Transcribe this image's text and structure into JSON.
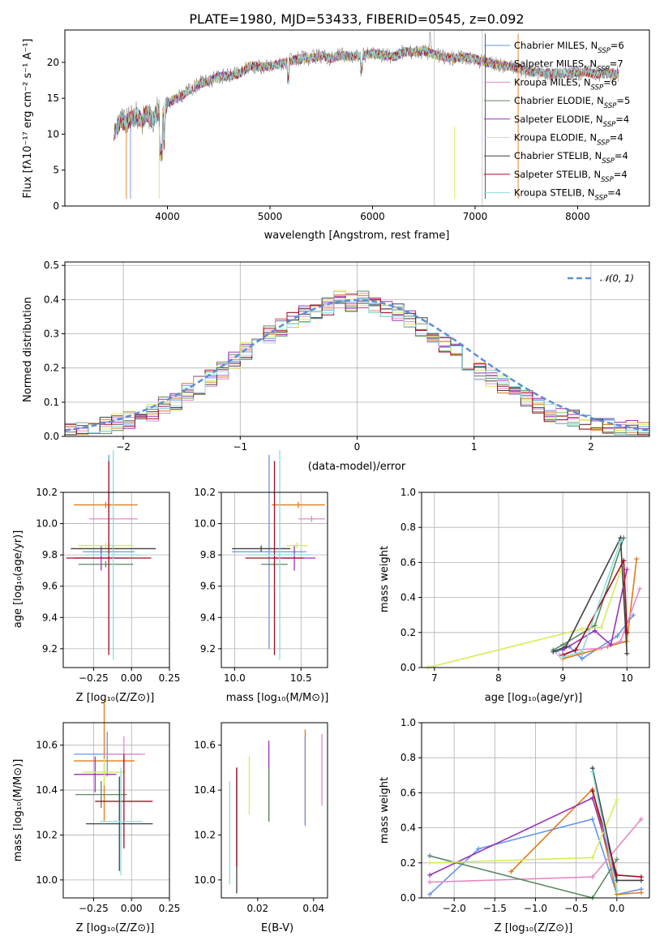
{
  "colors": [
    "#6495ed",
    "#e07b1a",
    "#e58ac3",
    "#5a8a5e",
    "#9a32b8",
    "#d4ec5a",
    "#404040",
    "#a01020",
    "#8adde0"
  ],
  "series_names": [
    "Chabrier MILES",
    "Salpeter MILES",
    "Kroupa MILES",
    "Chabrier ELODIE",
    "Salpeter ELODIE",
    "Kroupa ELODIE",
    "Chabrier STELIB",
    "Salpeter STELIB",
    "Kroupa STELIB"
  ],
  "nssp": [
    "6",
    "7",
    "6",
    "5",
    "4",
    "4",
    "4",
    "4",
    "4"
  ],
  "chart_data": [
    {
      "id": "spectrum",
      "type": "line",
      "title": "PLATE=1980, MJD=53433, FIBERID=0545, z=0.092",
      "xlabel": "wavelength [Angstrom, rest frame]",
      "ylabel": "Flux [fλ10⁻¹⁷ erg cm⁻² s⁻¹ A⁻¹]",
      "xlim": [
        3000,
        8700
      ],
      "ylim": [
        0,
        24.5
      ],
      "xticks": [
        "4000",
        "5000",
        "6000",
        "7000",
        "8000"
      ],
      "yticks": [
        "0",
        "5",
        "10",
        "15",
        "20"
      ],
      "grid": false,
      "legend_position": "top-right",
      "legend": [
        "Chabrier MILES, N_SSP=6",
        "Salpeter MILES, N_SSP=7",
        "Kroupa MILES, N_SSP=6",
        "Chabrier ELODIE, N_SSP=5",
        "Salpeter ELODIE, N_SSP=4",
        "Kroupa ELODIE, N_SSP=4",
        "Chabrier STELIB, N_SSP=4",
        "Salpeter STELIB, N_SSP=4",
        "Kroupa STELIB, N_SSP=4"
      ],
      "x": [
        3480,
        3500,
        3550,
        3600,
        3650,
        3700,
        3750,
        3800,
        3850,
        3900,
        3950,
        4000,
        4100,
        4200,
        4300,
        4400,
        4500,
        4600,
        4700,
        4800,
        4900,
        5000,
        5100,
        5200,
        5300,
        5400,
        5500,
        5600,
        5700,
        5800,
        5900,
        6000,
        6100,
        6200,
        6300,
        6400,
        6500,
        6600,
        6700,
        6800,
        6900,
        7000,
        7100,
        7200,
        7300,
        7400,
        7500,
        7600,
        7700,
        7800,
        7900,
        8000,
        8100,
        8200,
        8300,
        8400
      ],
      "y": [
        10.2,
        10.8,
        12,
        11.5,
        12.2,
        12.6,
        11.8,
        13,
        12,
        13.2,
        12.4,
        14.4,
        15,
        16,
        17,
        17.4,
        18,
        18.1,
        18.4,
        19.5,
        19.4,
        19.4,
        19.8,
        20.2,
        20.5,
        20.6,
        20.9,
        20.6,
        21,
        20.8,
        21,
        21.2,
        21,
        20.8,
        21.4,
        21.5,
        21.6,
        21.1,
        20.7,
        20.6,
        20.8,
        20.4,
        20.1,
        19.7,
        19.5,
        19.3,
        18.8,
        18.6,
        18.5,
        18.4,
        18.5,
        18.6,
        18.6,
        18.4,
        18.5,
        18.4
      ]
    },
    {
      "id": "residuals",
      "type": "histogram",
      "xlabel": "(data-model)/error",
      "ylabel": "Normed distribution",
      "xlim": [
        -2.5,
        2.5
      ],
      "ylim": [
        0,
        0.51
      ],
      "xticks": [
        "−2",
        "−1",
        "0",
        "1",
        "2"
      ],
      "yticks": [
        "0.0",
        "0.1",
        "0.2",
        "0.3",
        "0.4",
        "0.5"
      ],
      "grid": true,
      "legend_position": "top-right",
      "legend": [
        "𝒩(0, 1)"
      ],
      "bin_width": 0.1,
      "series_hist": [
        [
          0.015,
          0.02,
          0.03,
          0.03,
          0.04,
          0.05,
          0.06,
          0.07,
          0.09,
          0.1,
          0.13,
          0.15,
          0.17,
          0.19,
          0.22,
          0.25,
          0.28,
          0.3,
          0.32,
          0.34,
          0.36,
          0.37,
          0.38,
          0.4,
          0.39,
          0.4,
          0.38,
          0.37,
          0.36,
          0.34,
          0.32,
          0.3,
          0.27,
          0.25,
          0.22,
          0.19,
          0.17,
          0.15,
          0.13,
          0.11,
          0.09,
          0.07,
          0.06,
          0.05,
          0.04,
          0.03,
          0.03,
          0.02,
          0.02,
          0.015
        ]
      ],
      "normal_curve": {
        "mean": 0,
        "sd": 1
      }
    },
    {
      "id": "age_vs_Z",
      "type": "errorbar",
      "xlabel": "Z [log₁₀(Z/Z⊙)]",
      "ylabel": "age  [log₁₀(age/yr)]",
      "xlim": [
        -0.45,
        0.25
      ],
      "ylim": [
        9.08,
        10.2
      ],
      "xticks": [
        "−0.25",
        "0.00",
        "0.25"
      ],
      "yticks": [
        "9.2",
        "9.4",
        "9.6",
        "9.8",
        "10.0",
        "10.2"
      ],
      "grid": true,
      "points": [
        {
          "x": -0.15,
          "xerr": 0.17,
          "y": 9.82,
          "yerr": 0.62
        },
        {
          "x": -0.17,
          "xerr": 0.21,
          "y": 10.12,
          "yerr": 0.02
        },
        {
          "x": -0.12,
          "xerr": 0.16,
          "y": 10.03,
          "yerr": 0.02
        },
        {
          "x": -0.17,
          "xerr": 0.18,
          "y": 9.74,
          "yerr": 0.02
        },
        {
          "x": -0.2,
          "xerr": 0.18,
          "y": 9.78,
          "yerr": 0.08
        },
        {
          "x": -0.17,
          "xerr": 0.18,
          "y": 9.86,
          "yerr": 0.02
        },
        {
          "x": -0.12,
          "xerr": 0.28,
          "y": 9.84,
          "yerr": 0.02
        },
        {
          "x": -0.15,
          "xerr": 0.28,
          "y": 9.78,
          "yerr": 0.62
        },
        {
          "x": -0.12,
          "xerr": 0.18,
          "y": 9.8,
          "yerr": 0.67
        }
      ]
    },
    {
      "id": "age_vs_mass",
      "type": "errorbar",
      "xlabel": "mass [log₁₀(M/M⊙)]",
      "ylabel": "",
      "xlim": [
        9.9,
        10.7
      ],
      "ylim": [
        9.08,
        10.2
      ],
      "xticks": [
        "10.0",
        "10.5"
      ],
      "yticks": [
        "9.2",
        "9.4",
        "9.6",
        "9.8",
        "10.0",
        "10.2"
      ],
      "grid": true,
      "points": [
        {
          "x": 10.26,
          "xerr": 0.28,
          "y": 9.82,
          "yerr": 0.62
        },
        {
          "x": 10.48,
          "xerr": 0.2,
          "y": 10.12,
          "yerr": 0.02
        },
        {
          "x": 10.58,
          "xerr": 0.1,
          "y": 10.03,
          "yerr": 0.02
        },
        {
          "x": 10.3,
          "xerr": 0.1,
          "y": 9.74,
          "yerr": 0.02
        },
        {
          "x": 10.45,
          "xerr": 0.16,
          "y": 9.78,
          "yerr": 0.08
        },
        {
          "x": 10.47,
          "xerr": 0.08,
          "y": 9.86,
          "yerr": 0.02
        },
        {
          "x": 10.2,
          "xerr": 0.22,
          "y": 9.84,
          "yerr": 0.02
        },
        {
          "x": 10.3,
          "xerr": 0.22,
          "y": 9.78,
          "yerr": 0.62
        },
        {
          "x": 10.34,
          "xerr": 0.24,
          "y": 9.8,
          "yerr": 0.67
        }
      ]
    },
    {
      "id": "weight_vs_age",
      "type": "line",
      "xlabel": "age  [log₁₀(age/yr)]",
      "ylabel": "mass weight",
      "xlim": [
        6.8,
        10.35
      ],
      "ylim": [
        0,
        1
      ],
      "xticks": [
        "7",
        "8",
        "9",
        "10"
      ],
      "yticks": [
        "0.0",
        "0.2",
        "0.4",
        "0.6",
        "0.8",
        "1.0"
      ],
      "grid": true,
      "lines": [
        {
          "x": [
            8.9,
            9.1,
            9.3,
            9.85,
            10.1
          ],
          "y": [
            0.09,
            0.12,
            0.05,
            0.18,
            0.3
          ]
        },
        {
          "x": [
            9.0,
            9.3,
            9.7,
            10.0,
            10.15
          ],
          "y": [
            0.05,
            0.08,
            0.12,
            0.15,
            0.62
          ]
        },
        {
          "x": [
            8.95,
            9.2,
            9.6,
            9.9,
            10.2
          ],
          "y": [
            0.07,
            0.1,
            0.11,
            0.15,
            0.45
          ]
        },
        {
          "x": [
            8.85,
            9.0,
            9.5,
            9.95
          ],
          "y": [
            0.1,
            0.13,
            0.24,
            0.74
          ]
        },
        {
          "x": [
            9.0,
            9.5,
            9.75,
            10.0
          ],
          "y": [
            0.1,
            0.21,
            0.13,
            0.56
          ]
        },
        {
          "x": [
            6.9,
            9.3,
            9.6,
            9.9
          ],
          "y": [
            0.0,
            0.22,
            0.23,
            0.55
          ]
        },
        {
          "x": [
            8.85,
            9.05,
            9.9,
            10.0
          ],
          "y": [
            0.09,
            0.12,
            0.74,
            0.08
          ]
        },
        {
          "x": [
            9.0,
            9.2,
            9.95,
            10.0
          ],
          "y": [
            0.07,
            0.1,
            0.61,
            0.2
          ]
        },
        {
          "x": [
            9.0,
            9.3,
            9.9
          ],
          "y": [
            0.06,
            0.09,
            0.72
          ]
        }
      ]
    },
    {
      "id": "mass_vs_Z",
      "type": "errorbar",
      "xlabel": "Z [log₁₀(Z/Z⊙)]",
      "ylabel": "mass [log₁₀(M/M⊙)]",
      "xlim": [
        -0.45,
        0.25
      ],
      "ylim": [
        9.92,
        10.7
      ],
      "xticks": [
        "−0.25",
        "0.00",
        "0.25"
      ],
      "yticks": [
        "10.0",
        "10.2",
        "10.4",
        "10.6"
      ],
      "grid": true,
      "points": [
        {
          "x": -0.16,
          "xerr": 0.22,
          "y": 10.56,
          "yerr": 0.1
        },
        {
          "x": -0.18,
          "xerr": 0.2,
          "y": 10.53,
          "yerr": 0.27
        },
        {
          "x": -0.05,
          "xerr": 0.14,
          "y": 10.56,
          "yerr": 0.08
        },
        {
          "x": -0.2,
          "xerr": 0.17,
          "y": 10.38,
          "yerr": 0.06
        },
        {
          "x": -0.24,
          "xerr": 0.14,
          "y": 10.47,
          "yerr": 0.08
        },
        {
          "x": -0.18,
          "xerr": 0.14,
          "y": 10.48,
          "yerr": 0.06
        },
        {
          "x": -0.08,
          "xerr": 0.22,
          "y": 10.25,
          "yerr": 0.21
        },
        {
          "x": -0.05,
          "xerr": 0.19,
          "y": 10.35,
          "yerr": 0.21
        },
        {
          "x": -0.07,
          "xerr": 0.14,
          "y": 10.26,
          "yerr": 0.24
        }
      ]
    },
    {
      "id": "mass_vs_EBV",
      "type": "errorbar",
      "xlabel": "E(B-V)",
      "ylabel": "",
      "xlim": [
        0.007,
        0.045
      ],
      "ylim": [
        9.92,
        10.7
      ],
      "xticks": [
        "0.02",
        "0.04"
      ],
      "yticks": [
        "10.0",
        "10.2",
        "10.4",
        "10.6"
      ],
      "grid": false,
      "points": [
        {
          "x": 0.01,
          "xerr": 0,
          "y": 10.21,
          "yerr": 0.23
        },
        {
          "x": 0.0125,
          "xerr": 0,
          "y": 10.22,
          "yerr": 0.28
        },
        {
          "x": 0.017,
          "xerr": 0,
          "y": 10.42,
          "yerr": 0.13
        },
        {
          "x": 0.024,
          "xerr": 0,
          "y": 10.44,
          "yerr": 0.18
        },
        {
          "x": 0.024,
          "xerr": 0,
          "y": 10.38,
          "yerr": 0.12
        },
        {
          "x": 0.037,
          "xerr": 0,
          "y": 10.46,
          "yerr": 0.21
        },
        {
          "x": 0.037,
          "xerr": 0,
          "y": 10.44,
          "yerr": 0.2
        },
        {
          "x": 0.043,
          "xerr": 0,
          "y": 10.49,
          "yerr": 0.16
        },
        {
          "x": 0.0125,
          "xerr": 0,
          "y": 10.28,
          "yerr": 0.22
        }
      ],
      "point_colors": [
        8,
        6,
        5,
        4,
        3,
        1,
        0,
        2,
        7
      ]
    },
    {
      "id": "weight_vs_Z",
      "type": "line",
      "xlabel": "Z [log₁₀(Z/Z⊙)]",
      "ylabel": "mass weight",
      "xlim": [
        -2.4,
        0.4
      ],
      "ylim": [
        0,
        1
      ],
      "xticks": [
        "−2.0",
        "−1.5",
        "−1.0",
        "−0.5",
        "0.0"
      ],
      "yticks": [
        "0.0",
        "0.2",
        "0.4",
        "0.6",
        "0.8",
        "1.0"
      ],
      "grid": true,
      "lines": [
        {
          "x": [
            -2.3,
            -1.7,
            -0.3,
            0.0,
            0.3
          ],
          "y": [
            0.02,
            0.28,
            0.45,
            0.02,
            0.05
          ]
        },
        {
          "x": [
            -1.3,
            -0.3,
            0.0,
            0.3
          ],
          "y": [
            0.15,
            0.62,
            0.02,
            0.03
          ]
        },
        {
          "x": [
            -2.3,
            -0.3,
            0.3
          ],
          "y": [
            0.09,
            0.12,
            0.45
          ]
        },
        {
          "x": [
            -2.3,
            -0.3,
            0.0
          ],
          "y": [
            0.24,
            0.0,
            0.22
          ]
        },
        {
          "x": [
            -2.3,
            -0.3,
            0.0
          ],
          "y": [
            0.13,
            0.57,
            0.1
          ]
        },
        {
          "x": [
            -2.3,
            -0.3,
            0.0
          ],
          "y": [
            0.2,
            0.23,
            0.56
          ]
        },
        {
          "x": [
            -0.3,
            0.0,
            0.3
          ],
          "y": [
            0.74,
            0.1,
            0.1
          ]
        },
        {
          "x": [
            -0.3,
            0.0,
            0.3
          ],
          "y": [
            0.61,
            0.13,
            0.12
          ]
        },
        {
          "x": [
            -0.3,
            0.0
          ],
          "y": [
            0.72,
            0.04
          ]
        }
      ]
    }
  ]
}
